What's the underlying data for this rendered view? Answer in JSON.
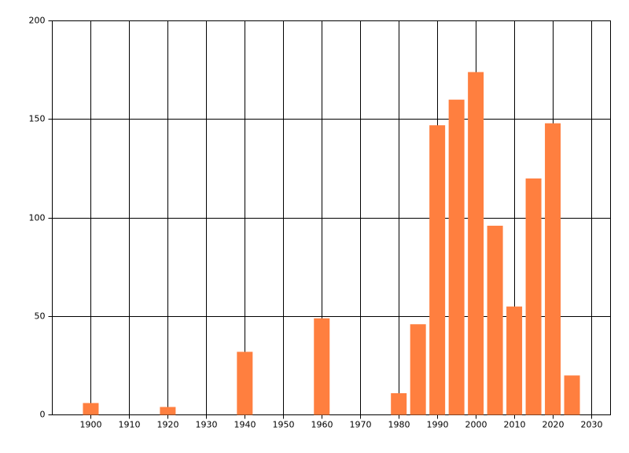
{
  "chart_data": {
    "type": "bar",
    "x": [
      1900,
      1920,
      1940,
      1960,
      1980,
      1985,
      1990,
      1995,
      2000,
      2005,
      2010,
      2015,
      2020,
      2025
    ],
    "values": [
      6,
      4,
      32,
      49,
      11,
      46,
      147,
      160,
      174,
      96,
      55,
      120,
      148,
      20
    ],
    "color": "#ff7f3f",
    "xlim": [
      1890,
      2035
    ],
    "xticks": [
      1900,
      1910,
      1920,
      1930,
      1940,
      1950,
      1960,
      1970,
      1980,
      1990,
      2000,
      2010,
      2020,
      2030
    ],
    "ylim": [
      0,
      200
    ],
    "yticks": [
      0,
      50,
      100,
      150,
      200
    ],
    "grid": true
  }
}
